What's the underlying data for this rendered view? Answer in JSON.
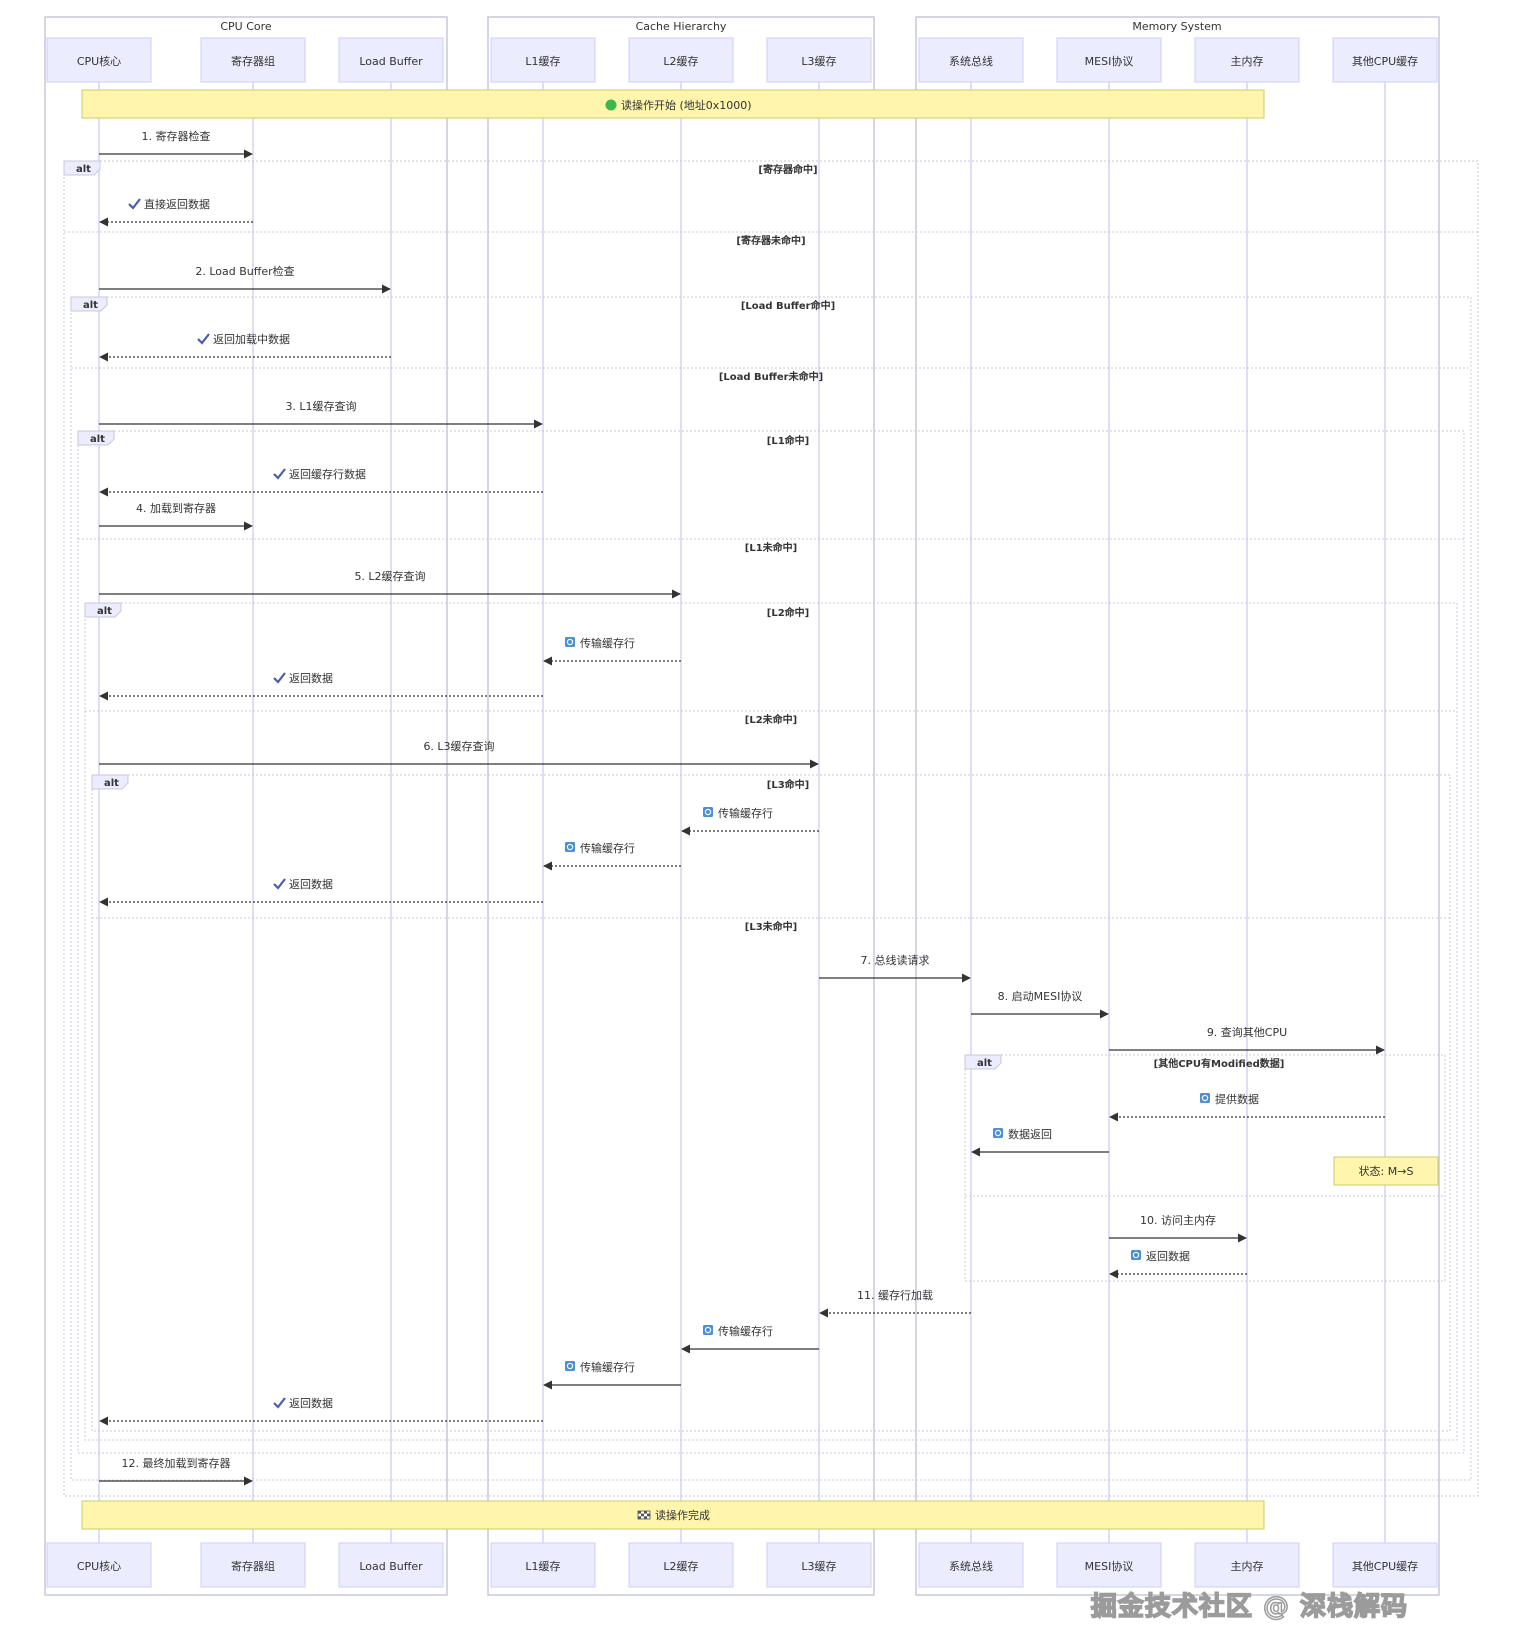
{
  "groups": [
    {
      "id": "core",
      "label": "CPU Core"
    },
    {
      "id": "cache",
      "label": "Cache Hierarchy"
    },
    {
      "id": "mem",
      "label": "Memory System"
    }
  ],
  "participants": [
    {
      "id": "cpu",
      "label": "CPU核心",
      "group": "core"
    },
    {
      "id": "reg",
      "label": "寄存器组",
      "group": "core"
    },
    {
      "id": "lb",
      "label": "Load Buffer",
      "group": "core"
    },
    {
      "id": "l1",
      "label": "L1缓存",
      "group": "cache"
    },
    {
      "id": "l2",
      "label": "L2缓存",
      "group": "cache"
    },
    {
      "id": "l3",
      "label": "L3缓存",
      "group": "cache"
    },
    {
      "id": "bus",
      "label": "系统总线",
      "group": "mem"
    },
    {
      "id": "mesi",
      "label": "MESI协议",
      "group": "mem"
    },
    {
      "id": "mm",
      "label": "主内存",
      "group": "mem"
    },
    {
      "id": "ocpu",
      "label": "其他CPU缓存",
      "group": "mem"
    }
  ],
  "notes": [
    {
      "id": "start",
      "text": "读操作开始 (地址0x1000)",
      "icon": "green-circle-icon"
    },
    {
      "id": "state",
      "text": "状态: M→S"
    },
    {
      "id": "end",
      "text": "读操作完成",
      "icon": "checker-flag-icon"
    }
  ],
  "alt_keyword": "alt",
  "sections": [
    {
      "id": "s1",
      "text": "[寄存器命中]"
    },
    {
      "id": "s2",
      "text": "[寄存器未命中]"
    },
    {
      "id": "s3",
      "text": "[Load Buffer命中]"
    },
    {
      "id": "s4",
      "text": "[Load Buffer未命中]"
    },
    {
      "id": "s5",
      "text": "[L1命中]"
    },
    {
      "id": "s6",
      "text": "[L1未命中]"
    },
    {
      "id": "s7",
      "text": "[L2命中]"
    },
    {
      "id": "s8",
      "text": "[L2未命中]"
    },
    {
      "id": "s9",
      "text": "[L3命中]"
    },
    {
      "id": "s10",
      "text": "[L3未命中]"
    },
    {
      "id": "s11",
      "text": "[其他CPU有Modified数据]"
    }
  ],
  "messages": [
    {
      "id": "m1",
      "from": "cpu",
      "to": "reg",
      "text": "1. 寄存器检查",
      "style": "solid"
    },
    {
      "id": "m2",
      "from": "reg",
      "to": "cpu",
      "text": "直接返回数据",
      "style": "dotted",
      "icon": "check-icon"
    },
    {
      "id": "m3",
      "from": "cpu",
      "to": "lb",
      "text": "2. Load Buffer检查",
      "style": "solid"
    },
    {
      "id": "m4",
      "from": "lb",
      "to": "cpu",
      "text": "返回加载中数据",
      "style": "dotted",
      "icon": "check-icon"
    },
    {
      "id": "m5",
      "from": "cpu",
      "to": "l1",
      "text": "3. L1缓存查询",
      "style": "solid"
    },
    {
      "id": "m6",
      "from": "l1",
      "to": "cpu",
      "text": "返回缓存行数据",
      "style": "dotted",
      "icon": "check-icon"
    },
    {
      "id": "m7",
      "from": "cpu",
      "to": "reg",
      "text": "4. 加载到寄存器",
      "style": "solid"
    },
    {
      "id": "m8",
      "from": "cpu",
      "to": "l2",
      "text": "5. L2缓存查询",
      "style": "solid"
    },
    {
      "id": "m9",
      "from": "l2",
      "to": "l1",
      "text": "传输缓存行",
      "style": "dotted",
      "icon": "transfer-icon"
    },
    {
      "id": "m10",
      "from": "l1",
      "to": "cpu",
      "text": "返回数据",
      "style": "dotted",
      "icon": "check-icon"
    },
    {
      "id": "m11",
      "from": "cpu",
      "to": "l3",
      "text": "6. L3缓存查询",
      "style": "solid"
    },
    {
      "id": "m12",
      "from": "l3",
      "to": "l2",
      "text": "传输缓存行",
      "style": "dotted",
      "icon": "transfer-icon"
    },
    {
      "id": "m13",
      "from": "l2",
      "to": "l1",
      "text": "传输缓存行",
      "style": "dotted",
      "icon": "transfer-icon"
    },
    {
      "id": "m14",
      "from": "l1",
      "to": "cpu",
      "text": "返回数据",
      "style": "dotted",
      "icon": "check-icon"
    },
    {
      "id": "m15",
      "from": "l3",
      "to": "bus",
      "text": "7. 总线读请求",
      "style": "solid"
    },
    {
      "id": "m16",
      "from": "bus",
      "to": "mesi",
      "text": "8. 启动MESI协议",
      "style": "solid"
    },
    {
      "id": "m17",
      "from": "mesi",
      "to": "ocpu",
      "text": "9. 查询其他CPU",
      "style": "solid"
    },
    {
      "id": "m18",
      "from": "ocpu",
      "to": "mesi",
      "text": "提供数据",
      "style": "dotted",
      "icon": "transfer-icon"
    },
    {
      "id": "m19",
      "from": "mesi",
      "to": "bus",
      "text": "数据返回",
      "style": "solid",
      "icon": "transfer-icon"
    },
    {
      "id": "m20",
      "from": "mesi",
      "to": "mm",
      "text": "10. 访问主内存",
      "style": "solid"
    },
    {
      "id": "m21",
      "from": "mm",
      "to": "mesi",
      "text": "返回数据",
      "style": "dotted",
      "icon": "transfer-icon"
    },
    {
      "id": "m22",
      "from": "bus",
      "to": "l3",
      "text": "11. 缓存行加载",
      "style": "dotted"
    },
    {
      "id": "m23",
      "from": "l3",
      "to": "l2",
      "text": "传输缓存行",
      "style": "solid",
      "icon": "transfer-icon"
    },
    {
      "id": "m24",
      "from": "l2",
      "to": "l1",
      "text": "传输缓存行",
      "style": "solid",
      "icon": "transfer-icon"
    },
    {
      "id": "m25",
      "from": "l1",
      "to": "cpu",
      "text": "返回数据",
      "style": "dotted",
      "icon": "check-icon"
    },
    {
      "id": "m26",
      "from": "cpu",
      "to": "reg",
      "text": "12. 最终加载到寄存器",
      "style": "solid"
    }
  ],
  "watermark": "掘金技术社区 @ 深栈解码",
  "colors": {
    "participant_fill": "#ececff",
    "participant_stroke": "#ccccff",
    "lifeline": "#d4d4f5",
    "note_fill": "#fff5ad",
    "note_stroke": "#cccc66",
    "arrow": "#333333",
    "frame": "#c9c9d9"
  }
}
